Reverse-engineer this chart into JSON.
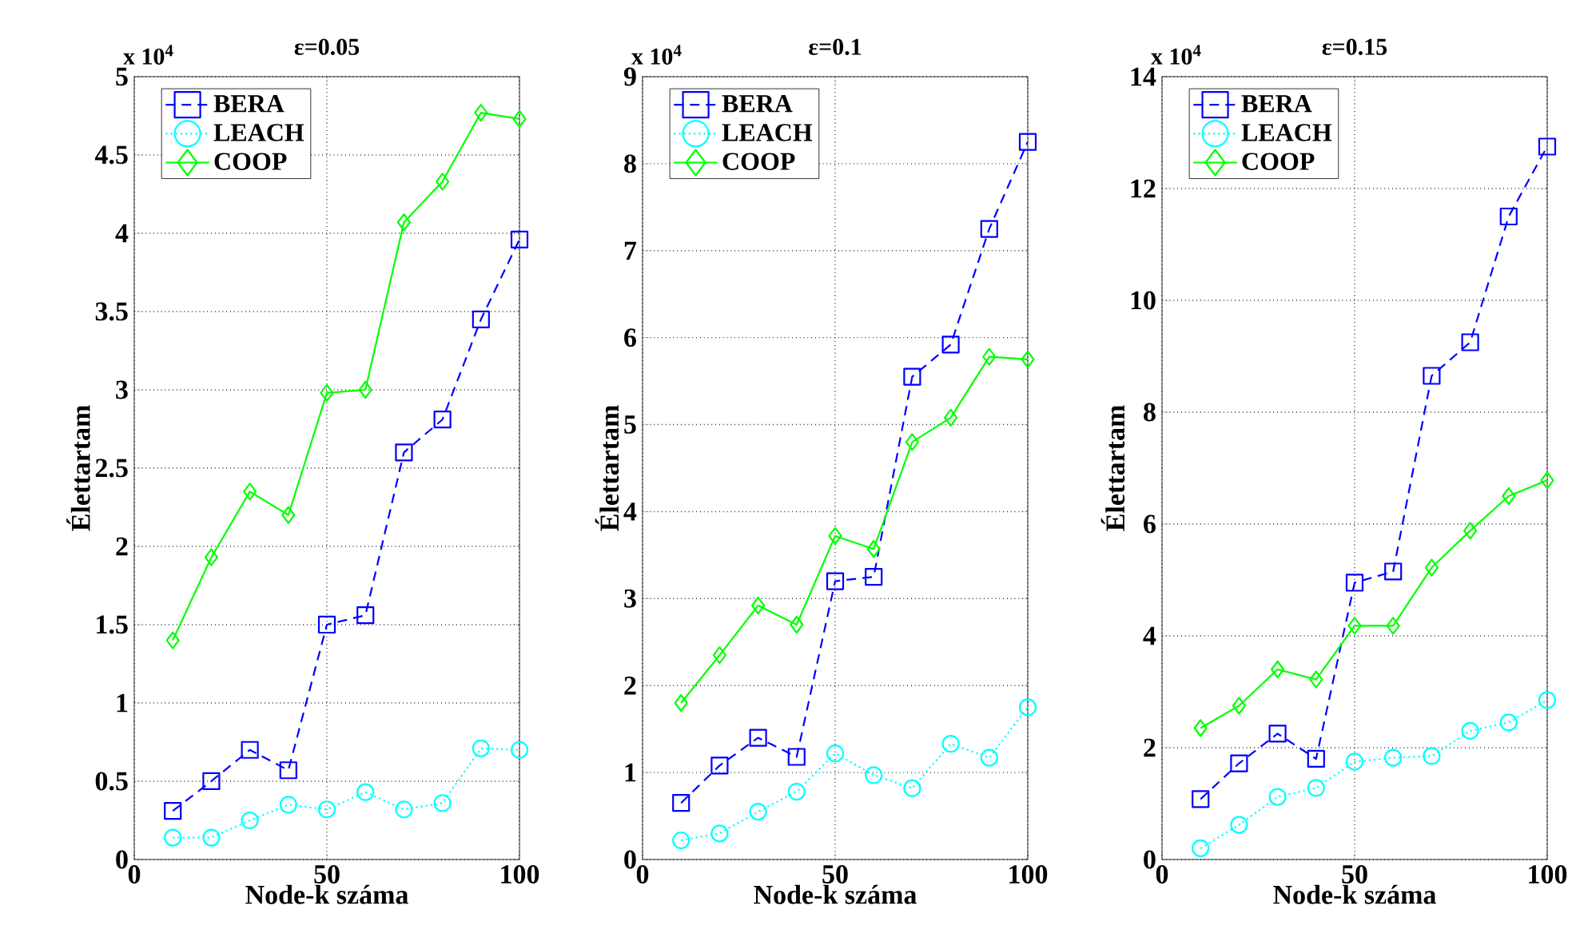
{
  "chart_data": [
    {
      "type": "line",
      "title": "ε=0.05",
      "xlabel": "Node-k száma",
      "ylabel": "Élettartam",
      "annotations": [
        "x 10$^{4}$"
      ],
      "x": [
        10,
        20,
        30,
        40,
        50,
        60,
        70,
        80,
        90,
        100
      ],
      "xlim": [
        0,
        100
      ],
      "xticks": [
        0,
        50,
        100
      ],
      "ylim": [
        0,
        5
      ],
      "yticks": [
        0,
        0.5,
        1,
        1.5,
        2,
        2.5,
        3,
        3.5,
        4,
        4.5,
        5
      ],
      "grid": true,
      "legend": "top left",
      "series": [
        {
          "name": "BERA",
          "color": "#0000ff",
          "marker": "square",
          "line_style": "dashed",
          "values": [
            0.31,
            0.5,
            0.7,
            0.57,
            1.5,
            1.56,
            2.6,
            2.81,
            3.45,
            3.96
          ]
        },
        {
          "name": "LEACH",
          "color": "#00ffff",
          "marker": "circle",
          "line_style": "dotted",
          "values": [
            0.14,
            0.14,
            0.25,
            0.35,
            0.32,
            0.43,
            0.32,
            0.36,
            0.71,
            0.7
          ]
        },
        {
          "name": "COOP",
          "color": "#00ff00",
          "marker": "diamond",
          "line_style": "solid",
          "values": [
            1.4,
            1.93,
            2.35,
            2.2,
            2.98,
            3.0,
            4.07,
            4.33,
            4.77,
            4.73
          ]
        }
      ]
    },
    {
      "type": "line",
      "title": "ε=0.1",
      "xlabel": "Node-k száma",
      "ylabel": "Élettartam",
      "annotations": [
        "x 10$^{4}$"
      ],
      "x": [
        10,
        20,
        30,
        40,
        50,
        60,
        70,
        80,
        90,
        100
      ],
      "xlim": [
        0,
        100
      ],
      "xticks": [
        0,
        50,
        100
      ],
      "ylim": [
        0,
        9
      ],
      "yticks": [
        0,
        1,
        2,
        3,
        4,
        5,
        6,
        7,
        8,
        9
      ],
      "grid": true,
      "legend": "top left",
      "series": [
        {
          "name": "BERA",
          "color": "#0000ff",
          "marker": "square",
          "line_style": "dashed",
          "values": [
            0.65,
            1.08,
            1.4,
            1.18,
            3.2,
            3.25,
            5.55,
            5.92,
            7.25,
            8.25
          ]
        },
        {
          "name": "LEACH",
          "color": "#00ffff",
          "marker": "circle",
          "line_style": "dotted",
          "values": [
            0.22,
            0.3,
            0.55,
            0.78,
            1.22,
            0.97,
            0.82,
            1.33,
            1.17,
            1.75
          ]
        },
        {
          "name": "COOP",
          "color": "#00ff00",
          "marker": "diamond",
          "line_style": "solid",
          "values": [
            1.8,
            2.35,
            2.92,
            2.7,
            3.72,
            3.57,
            4.8,
            5.08,
            5.78,
            5.75
          ]
        }
      ]
    },
    {
      "type": "line",
      "title": "ε=0.15",
      "xlabel": "Node-k száma",
      "ylabel": "Élettartam",
      "annotations": [
        "x 10$^{4}$"
      ],
      "x": [
        10,
        20,
        30,
        40,
        50,
        60,
        70,
        80,
        90,
        100
      ],
      "xlim": [
        0,
        100
      ],
      "xticks": [
        0,
        50,
        100
      ],
      "ylim": [
        0,
        14
      ],
      "yticks": [
        0,
        2,
        4,
        6,
        8,
        10,
        12,
        14
      ],
      "grid": true,
      "legend": "top left",
      "series": [
        {
          "name": "BERA",
          "color": "#0000ff",
          "marker": "square",
          "line_style": "dashed",
          "values": [
            1.08,
            1.72,
            2.25,
            1.8,
            4.95,
            5.15,
            8.65,
            9.25,
            11.5,
            12.75
          ]
        },
        {
          "name": "LEACH",
          "color": "#00ffff",
          "marker": "circle",
          "line_style": "dotted",
          "values": [
            0.2,
            0.62,
            1.12,
            1.28,
            1.75,
            1.82,
            1.85,
            2.3,
            2.45,
            2.85
          ]
        },
        {
          "name": "COOP",
          "color": "#00ff00",
          "marker": "diamond",
          "line_style": "solid",
          "values": [
            2.35,
            2.75,
            3.4,
            3.22,
            4.18,
            4.18,
            5.22,
            5.88,
            6.5,
            6.78
          ]
        }
      ]
    }
  ]
}
